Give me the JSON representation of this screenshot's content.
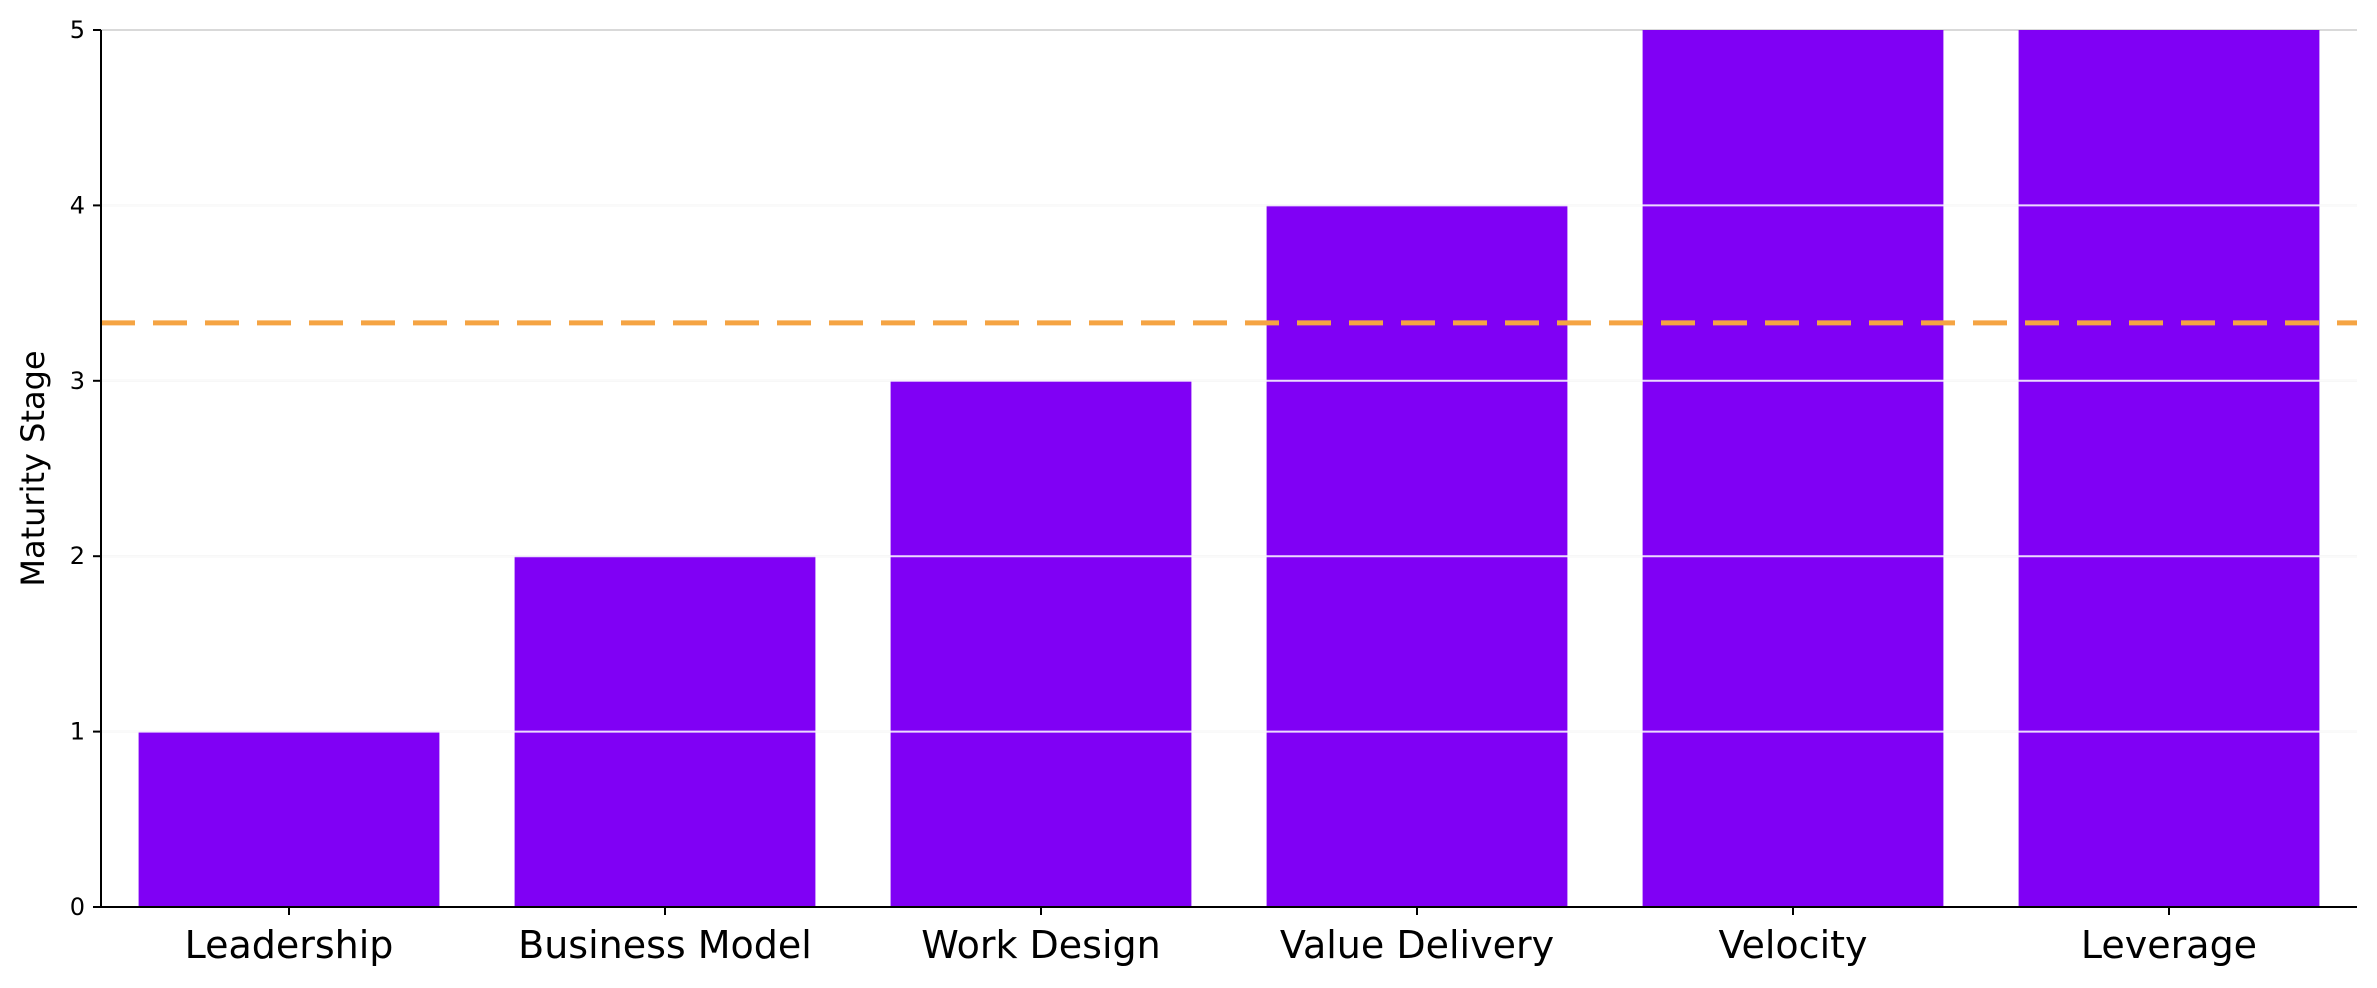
{
  "chart_data": {
    "type": "bar",
    "categories": [
      "Leadership",
      "Business Model",
      "Work Design",
      "Value Delivery",
      "Velocity",
      "Leverage"
    ],
    "values": [
      1,
      2,
      3,
      4,
      5,
      5
    ],
    "title": "",
    "xlabel": "",
    "ylabel": "Maturity Stage",
    "ylim": [
      0,
      5
    ],
    "yticks": [
      0,
      1,
      2,
      3,
      4,
      5
    ],
    "reference_line": {
      "value": 3.33,
      "style": "dashed"
    },
    "grid": "horizontal",
    "colors": {
      "bar": "#8000f5",
      "reference_line": "#f5a443",
      "grid": "#d9d9d9",
      "axis": "#000000"
    }
  }
}
